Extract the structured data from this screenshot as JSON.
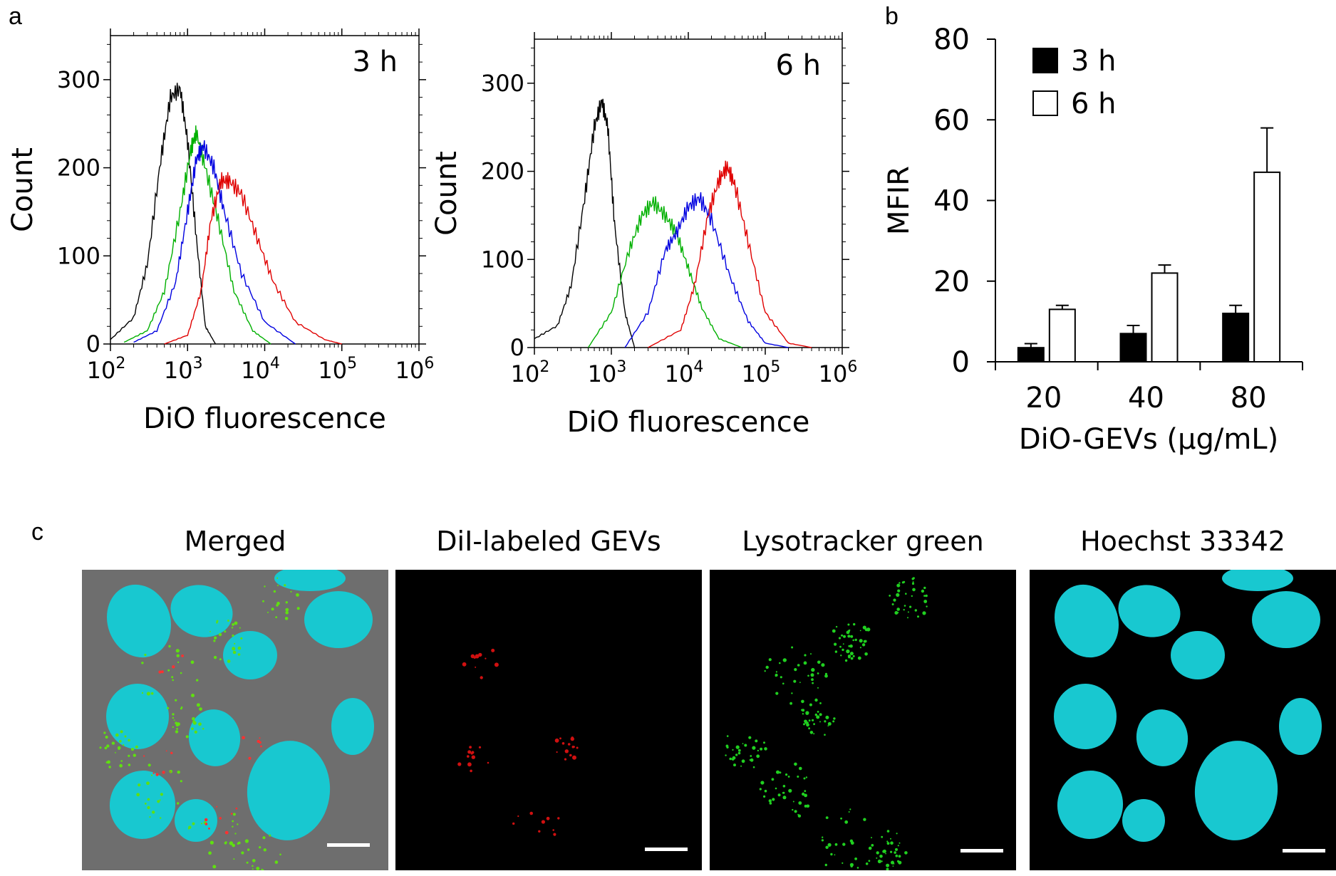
{
  "panel_labels": {
    "a": "a",
    "b": "b",
    "c": "c"
  },
  "colors": {
    "control": "#000000",
    "dose_20": "#00b000",
    "dose_40": "#0000e0",
    "dose_80": "#e00000",
    "cyan": "#18c8d0"
  },
  "chart_data": [
    {
      "type": "line",
      "panel": "a",
      "annotation": "3 h",
      "xlabel": "DiO fluorescence",
      "ylabel": "Count",
      "x_scale": "log",
      "xlim": [
        100,
        1000000
      ],
      "x_ticks": [
        "10",
        "10",
        "10",
        "10",
        "10"
      ],
      "x_tick_exponents": [
        "2",
        "3",
        "4",
        "5",
        "6"
      ],
      "ylim": [
        0,
        350
      ],
      "y_ticks": [
        "0",
        "100",
        "200",
        "300"
      ],
      "y_tick_values": [
        0,
        100,
        200,
        300
      ],
      "series": [
        {
          "color": "#000000",
          "x": [
            100,
            200,
            300,
            450,
            600,
            800,
            1000,
            1300,
            1700,
            2300
          ],
          "y": [
            5,
            30,
            90,
            210,
            280,
            290,
            230,
            120,
            20,
            0
          ]
        },
        {
          "color": "#00b000",
          "x": [
            150,
            300,
            500,
            800,
            1100,
            1300,
            1700,
            2500,
            4000,
            7000,
            12000
          ],
          "y": [
            2,
            15,
            60,
            150,
            220,
            240,
            200,
            140,
            60,
            15,
            0
          ]
        },
        {
          "color": "#0000e0",
          "x": [
            200,
            400,
            700,
            1000,
            1300,
            1600,
            2200,
            3000,
            5000,
            10000,
            25000
          ],
          "y": [
            2,
            15,
            70,
            150,
            210,
            225,
            200,
            150,
            80,
            25,
            0
          ]
        },
        {
          "color": "#e00000",
          "x": [
            500,
            1000,
            1500,
            2000,
            2700,
            3500,
            5000,
            8000,
            13000,
            25000,
            60000,
            100000
          ],
          "y": [
            0,
            10,
            60,
            140,
            185,
            185,
            170,
            120,
            70,
            25,
            5,
            0
          ]
        }
      ]
    },
    {
      "type": "line",
      "panel": "a",
      "annotation": "6 h",
      "xlabel": "DiO fluorescence",
      "ylabel": "Count",
      "x_scale": "log",
      "xlim": [
        100,
        1000000
      ],
      "x_ticks": [
        "10",
        "10",
        "10",
        "10",
        "10"
      ],
      "x_tick_exponents": [
        "2",
        "3",
        "4",
        "5",
        "6"
      ],
      "ylim": [
        0,
        350
      ],
      "y_ticks": [
        "0",
        "100",
        "200",
        "300"
      ],
      "y_tick_values": [
        0,
        100,
        200,
        300
      ],
      "series": [
        {
          "color": "#000000",
          "x": [
            100,
            200,
            300,
            450,
            600,
            750,
            900,
            1100,
            1500,
            2000
          ],
          "y": [
            10,
            25,
            70,
            170,
            250,
            280,
            250,
            140,
            40,
            0
          ]
        },
        {
          "color": "#00b000",
          "x": [
            500,
            1000,
            1700,
            2500,
            3500,
            5000,
            7000,
            10000,
            15000,
            25000,
            50000
          ],
          "y": [
            0,
            40,
            110,
            150,
            165,
            150,
            130,
            90,
            45,
            10,
            0
          ]
        },
        {
          "color": "#0000e0",
          "x": [
            1500,
            3000,
            5000,
            7000,
            10000,
            14000,
            20000,
            35000,
            60000,
            100000,
            200000
          ],
          "y": [
            0,
            40,
            110,
            130,
            160,
            170,
            145,
            80,
            30,
            5,
            0
          ]
        },
        {
          "color": "#e00000",
          "x": [
            3000,
            8000,
            12000,
            18000,
            25000,
            32000,
            40000,
            60000,
            100000,
            200000,
            400000
          ],
          "y": [
            0,
            20,
            70,
            150,
            190,
            205,
            185,
            120,
            40,
            5,
            0
          ]
        }
      ]
    },
    {
      "type": "bar",
      "panel": "b",
      "categories": [
        "20",
        "40",
        "80"
      ],
      "xlabel": "DiO-GEVs (µg/mL)",
      "ylabel": "MFIR",
      "ylim": [
        0,
        80
      ],
      "y_ticks": [
        "0",
        "20",
        "40",
        "60",
        "80"
      ],
      "y_tick_values": [
        0,
        20,
        40,
        60,
        80
      ],
      "legend_position": "top-left",
      "series": [
        {
          "name": "3 h",
          "color": "#000000",
          "values": [
            3.5,
            7,
            12
          ],
          "errors": [
            1,
            2,
            2
          ]
        },
        {
          "name": "6 h",
          "color": "#ffffff",
          "values": [
            13,
            22,
            47
          ],
          "errors": [
            1,
            2,
            11
          ]
        }
      ]
    }
  ],
  "microscopy": {
    "panel": "c",
    "titles": [
      "Merged",
      "DiI-labeled GEVs",
      "Lysotracker green",
      "Hoechst 33342"
    ]
  }
}
